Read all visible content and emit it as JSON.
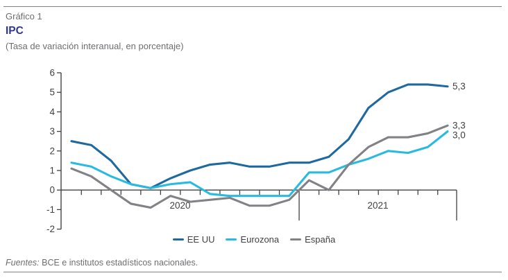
{
  "header": {
    "kicker": "Gráfico 1",
    "title": "IPC",
    "subtitle": "(Tasa de variación interanual, en porcentaje)"
  },
  "footer": {
    "sources_label": "Fuentes:",
    "sources_text": " BCE e institutos estadísticos nacionales."
  },
  "colors": {
    "title": "#2E368F",
    "muted_text": "#6D6E71",
    "axis_text": "#414042",
    "rule": "#828285"
  },
  "chart_data": {
    "type": "line",
    "title": "IPC",
    "subtitle": "(Tasa de variación interanual, en porcentaje)",
    "xlabel": "",
    "ylabel": "",
    "ylim": [
      -2,
      6
    ],
    "yticks": [
      -2,
      -1,
      0,
      1,
      2,
      3,
      4,
      5,
      6
    ],
    "grid": false,
    "legend_position": "bottom",
    "x_tick_labels": [
      "2020",
      "2021"
    ],
    "x": [
      "2020-01",
      "2020-02",
      "2020-03",
      "2020-04",
      "2020-05",
      "2020-06",
      "2020-07",
      "2020-08",
      "2020-09",
      "2020-10",
      "2020-11",
      "2020-12",
      "2021-01",
      "2021-02",
      "2021-03",
      "2021-04",
      "2021-05",
      "2021-06",
      "2021-07",
      "2021-08"
    ],
    "series": [
      {
        "name": "EE UU",
        "color": "#1F699E",
        "end_label": "5,3",
        "values": [
          2.5,
          2.3,
          1.5,
          0.3,
          0.1,
          0.6,
          1.0,
          1.3,
          1.4,
          1.2,
          1.2,
          1.4,
          1.4,
          1.7,
          2.6,
          4.2,
          5.0,
          5.4,
          5.4,
          5.3
        ]
      },
      {
        "name": "Eurozona",
        "color": "#29BADF",
        "end_label": "3,0",
        "values": [
          1.4,
          1.2,
          0.7,
          0.3,
          0.1,
          0.3,
          0.4,
          -0.2,
          -0.3,
          -0.3,
          -0.3,
          -0.3,
          0.9,
          0.9,
          1.3,
          1.6,
          2.0,
          1.9,
          2.2,
          3.0
        ]
      },
      {
        "name": "España",
        "color": "#808285",
        "end_label": "3,3",
        "values": [
          1.1,
          0.7,
          0.0,
          -0.7,
          -0.9,
          -0.3,
          -0.6,
          -0.5,
          -0.4,
          -0.8,
          -0.8,
          -0.5,
          0.5,
          0.0,
          1.3,
          2.2,
          2.7,
          2.7,
          2.9,
          3.3
        ]
      }
    ]
  }
}
